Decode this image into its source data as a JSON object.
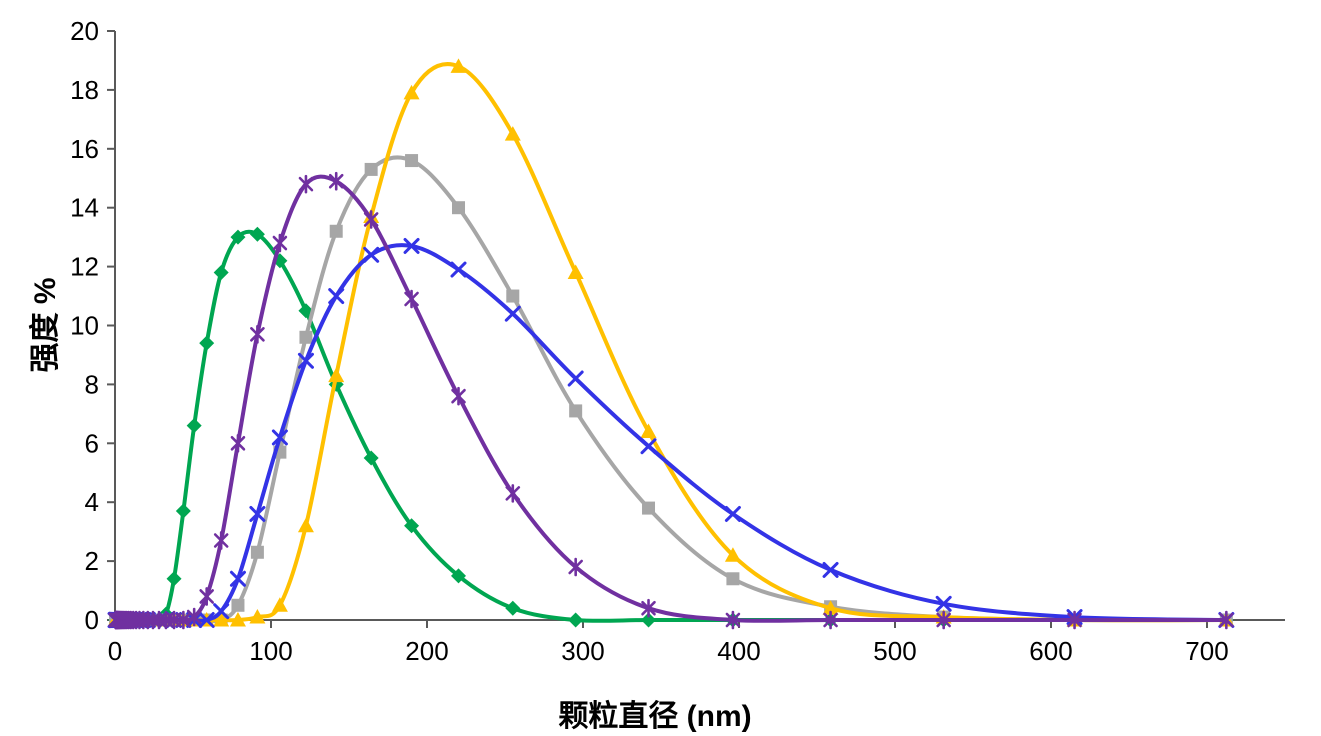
{
  "chart_data": {
    "type": "line",
    "title": "",
    "xlabel": "颗粒直径 (nm)",
    "ylabel": "强度 %",
    "xlim": [
      0,
      750
    ],
    "ylim": [
      0,
      20
    ],
    "xticks": [
      0,
      100,
      200,
      300,
      400,
      500,
      600,
      700
    ],
    "yticks": [
      0,
      2,
      4,
      6,
      8,
      10,
      12,
      14,
      16,
      18,
      20
    ],
    "grid": false,
    "legend": "none",
    "smoothed_lines": true,
    "axis_color": "#595959",
    "text_color": "#000000",
    "x": [
      0.4,
      0.4632,
      0.5365,
      0.6213,
      0.7195,
      0.8332,
      0.9649,
      1.117,
      1.294,
      1.499,
      1.736,
      2.01,
      2.328,
      2.696,
      3.122,
      3.615,
      4.187,
      4.849,
      5.615,
      6.503,
      7.531,
      8.721,
      10.1,
      11.7,
      13.54,
      15.69,
      18.17,
      21.04,
      24.36,
      28.21,
      32.67,
      37.84,
      43.82,
      50.75,
      58.77,
      68.06,
      78.82,
      91.28,
      105.7,
      122.4,
      141.8,
      164.2,
      190.1,
      220.2,
      255.0,
      295.3,
      342.0,
      396.1,
      458.7,
      531.2,
      615.1,
      712.4
    ],
    "series": [
      {
        "name": "series-green-diamond",
        "color": "#00A651",
        "marker": "diamond",
        "values": [
          0,
          0,
          0,
          0,
          0,
          0,
          0,
          0,
          0,
          0,
          0,
          0,
          0,
          0,
          0,
          0,
          0,
          0,
          0,
          0,
          0,
          0,
          0,
          0,
          0,
          0,
          0,
          0,
          0,
          0,
          0.2,
          1.4,
          3.7,
          6.6,
          9.4,
          11.8,
          13,
          13.1,
          12.2,
          10.5,
          8,
          5.5,
          3.2,
          1.5,
          0.4,
          0,
          0,
          0,
          0,
          0,
          0,
          0
        ]
      },
      {
        "name": "series-gray-square",
        "color": "#A6A6A6",
        "marker": "square",
        "values": [
          0,
          0,
          0,
          0,
          0,
          0,
          0,
          0,
          0,
          0,
          0,
          0,
          0,
          0,
          0,
          0,
          0,
          0,
          0,
          0,
          0,
          0,
          0,
          0,
          0,
          0,
          0,
          0,
          0,
          0,
          0,
          0,
          0,
          0,
          0,
          0,
          0.5,
          2.3,
          5.7,
          9.6,
          13.2,
          15.3,
          15.6,
          14,
          11,
          7.1,
          3.8,
          1.4,
          0.45,
          0.1,
          0,
          0
        ]
      },
      {
        "name": "series-gold-triangle",
        "color": "#FFC000",
        "marker": "triangle",
        "values": [
          0,
          0,
          0,
          0,
          0,
          0,
          0,
          0,
          0,
          0,
          0,
          0,
          0,
          0,
          0,
          0,
          0,
          0,
          0,
          0,
          0,
          0,
          0,
          0,
          0,
          0,
          0,
          0,
          0,
          0,
          0,
          0,
          0,
          0,
          0,
          0,
          0,
          0.1,
          0.5,
          3.2,
          8.3,
          13.7,
          17.9,
          18.8,
          16.5,
          11.8,
          6.4,
          2.2,
          0.4,
          0.1,
          0,
          0
        ]
      },
      {
        "name": "series-blue-x",
        "color": "#3333E6",
        "marker": "x",
        "values": [
          0,
          0,
          0,
          0,
          0,
          0,
          0,
          0,
          0,
          0,
          0,
          0,
          0,
          0,
          0,
          0,
          0,
          0,
          0,
          0,
          0,
          0,
          0,
          0,
          0,
          0,
          0,
          0,
          0,
          0,
          0,
          0,
          0,
          0,
          0,
          0.3,
          1.4,
          3.6,
          6.2,
          8.8,
          11,
          12.4,
          12.7,
          11.9,
          10.4,
          8.2,
          5.9,
          3.6,
          1.7,
          0.55,
          0.1,
          0
        ]
      },
      {
        "name": "series-purple-asterisk",
        "color": "#7030A0",
        "marker": "asterisk",
        "values": [
          0,
          0,
          0,
          0,
          0,
          0,
          0,
          0,
          0,
          0,
          0,
          0,
          0,
          0,
          0,
          0,
          0,
          0,
          0,
          0,
          0,
          0,
          0,
          0,
          0,
          0,
          0,
          0,
          0,
          0,
          0,
          0,
          0,
          0.1,
          0.8,
          2.7,
          6,
          9.7,
          12.8,
          14.8,
          14.9,
          13.6,
          10.9,
          7.6,
          4.3,
          1.8,
          0.4,
          0,
          0,
          0,
          0,
          0
        ]
      }
    ]
  }
}
